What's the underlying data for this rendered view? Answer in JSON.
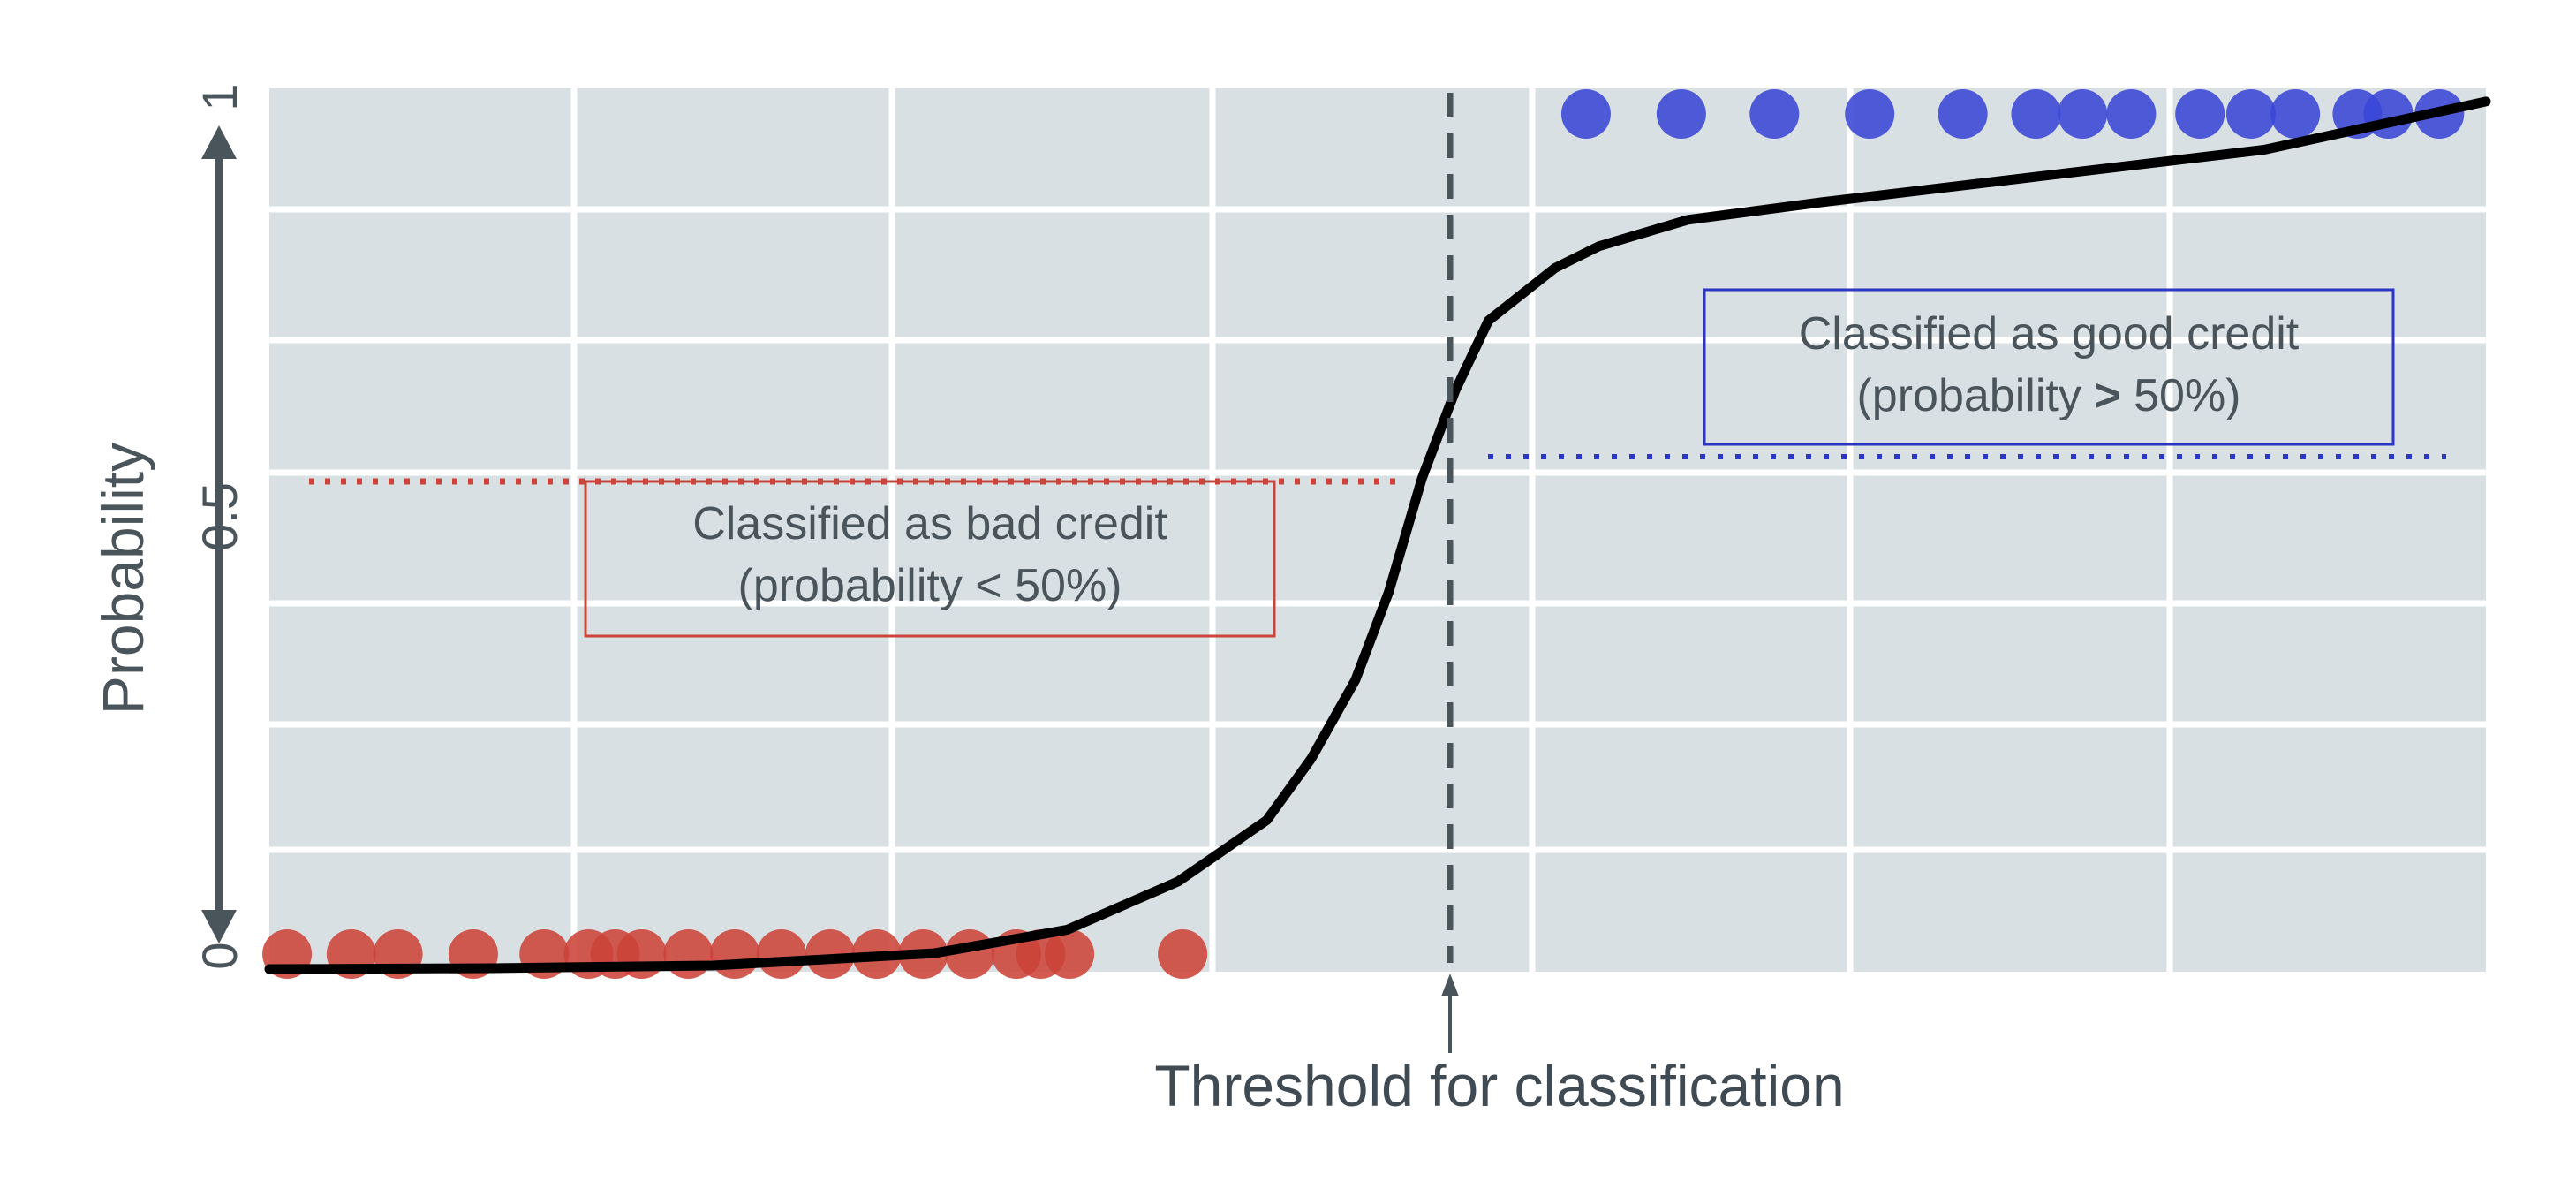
{
  "chart_data": {
    "type": "scatter",
    "title": "",
    "xlabel": "",
    "ylabel": "Probability",
    "ylim": [
      0,
      1
    ],
    "xlim": [
      0,
      1
    ],
    "y_ticks": [
      "0",
      "0.5",
      "1"
    ],
    "grid": true,
    "threshold_label": "Threshold for classification",
    "threshold_x": 0.53,
    "curve": {
      "description": "logistic",
      "x": [
        0.0,
        0.1,
        0.2,
        0.3,
        0.35,
        0.4,
        0.45,
        0.48,
        0.5,
        0.52,
        0.53,
        0.55,
        0.58,
        0.62,
        0.7,
        0.8,
        0.9,
        1.0
      ],
      "y": [
        0.0,
        0.002,
        0.005,
        0.015,
        0.03,
        0.06,
        0.13,
        0.26,
        0.4,
        0.54,
        0.6,
        0.74,
        0.82,
        0.86,
        0.9,
        0.93,
        0.96,
        0.99
      ]
    },
    "series": [
      {
        "name": "bad credit",
        "color": "#cc4339",
        "y": 0.02,
        "x": [
          0.008,
          0.037,
          0.058,
          0.092,
          0.124,
          0.144,
          0.156,
          0.168,
          0.189,
          0.21,
          0.231,
          0.253,
          0.274,
          0.295,
          0.316,
          0.337,
          0.348,
          0.361,
          0.412
        ]
      },
      {
        "name": "good credit",
        "color": "#3a45d6",
        "y": 0.97,
        "x": [
          0.594,
          0.637,
          0.679,
          0.722,
          0.764,
          0.797,
          0.818,
          0.84,
          0.871,
          0.894,
          0.914,
          0.942,
          0.956,
          0.979
        ]
      }
    ],
    "annotations": [
      {
        "name": "bad-credit-label",
        "line1": "Classified as bad credit",
        "line2": "(probability < 50%)",
        "color": "#cc4339",
        "line_y": 0.5
      },
      {
        "name": "good-credit-label",
        "line1": "Classified as good credit",
        "line2_pre": "(probability ",
        "line2_bold": ">",
        "line2_post": " 50%)",
        "color": "#2b36c4",
        "line_y": 0.5
      }
    ],
    "colors": {
      "plot_bg": "#d9e0e3",
      "grid": "#ffffff",
      "axis": "#4a545b",
      "curve": "#000000"
    }
  }
}
